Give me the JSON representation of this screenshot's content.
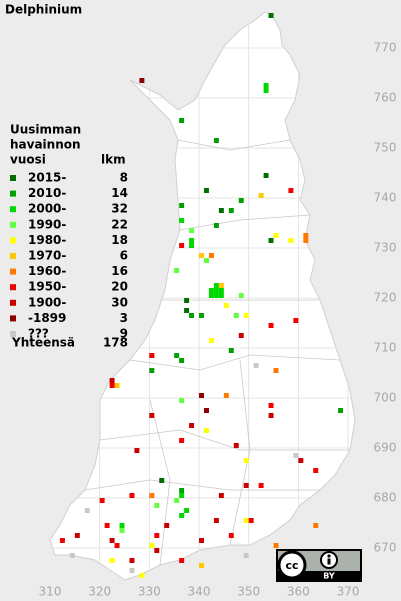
{
  "title": "Delphinium",
  "legend": {
    "heading": [
      "Uusimman",
      "havainnon",
      "vuosi"
    ],
    "count_heading": "lkm",
    "entries": [
      {
        "label": "2015-",
        "count": 8,
        "color": "#006e00",
        "squares": [
          [
            354,
            776
          ],
          [
            353,
            744
          ],
          [
            341,
            741
          ],
          [
            344,
            737
          ],
          [
            354,
            731
          ],
          [
            337,
            717
          ],
          [
            332,
            683
          ],
          [
            337,
            719
          ]
        ]
      },
      {
        "label": "2010-",
        "count": 14,
        "color": "#00a000",
        "squares": [
          [
            336,
            755
          ],
          [
            343,
            751
          ],
          [
            336,
            738
          ],
          [
            346,
            737
          ],
          [
            348,
            739
          ],
          [
            343,
            734
          ],
          [
            335,
            708
          ],
          [
            346,
            709
          ],
          [
            330,
            705
          ],
          [
            368,
            697
          ],
          [
            336,
            707
          ],
          [
            338,
            716
          ],
          [
            340,
            716
          ],
          [
            336,
            681
          ]
        ]
      },
      {
        "label": "2000-",
        "count": 32,
        "color": "#00d800",
        "squares": [
          [
            353,
            761
          ],
          [
            353,
            762
          ],
          [
            338,
            731
          ],
          [
            338,
            730
          ],
          [
            336,
            735
          ],
          [
            342,
            721
          ],
          [
            343,
            721
          ],
          [
            344,
            721
          ],
          [
            342,
            720
          ],
          [
            343,
            720
          ],
          [
            344,
            720
          ],
          [
            343,
            722
          ],
          [
            336,
            680
          ],
          [
            336,
            676
          ],
          [
            337,
            677
          ],
          [
            324,
            674
          ]
        ]
      },
      {
        "label": "1990-",
        "count": 22,
        "color": "#60ff40",
        "squares": [
          [
            338,
            733
          ],
          [
            341,
            727
          ],
          [
            335,
            725
          ],
          [
            348,
            720
          ],
          [
            347,
            716
          ],
          [
            336,
            699
          ],
          [
            331,
            678
          ],
          [
            335,
            679
          ],
          [
            324,
            673
          ]
        ]
      },
      {
        "label": "1980-",
        "count": 18,
        "color": "#ffff00",
        "squares": [
          [
            355,
            732
          ],
          [
            358,
            731
          ],
          [
            349,
            716
          ],
          [
            342,
            711
          ],
          [
            341,
            693
          ],
          [
            349,
            687
          ],
          [
            349,
            675
          ],
          [
            355,
            670
          ],
          [
            328,
            664
          ],
          [
            330,
            670
          ],
          [
            322,
            667
          ],
          [
            345,
            718
          ]
        ]
      },
      {
        "label": "1970-",
        "count": 6,
        "color": "#ffc800",
        "squares": [
          [
            352,
            740
          ],
          [
            340,
            728
          ],
          [
            344,
            722
          ],
          [
            323,
            702
          ],
          [
            340,
            666
          ]
        ]
      },
      {
        "label": "1960-",
        "count": 16,
        "color": "#ff7800",
        "squares": [
          [
            361,
            732
          ],
          [
            361,
            731
          ],
          [
            342,
            728
          ],
          [
            355,
            705
          ],
          [
            363,
            674
          ],
          [
            355,
            670
          ],
          [
            345,
            700
          ],
          [
            330,
            680
          ]
        ]
      },
      {
        "label": "1950-",
        "count": 20,
        "color": "#f00000",
        "squares": [
          [
            358,
            741
          ],
          [
            336,
            730
          ],
          [
            354,
            714
          ],
          [
            359,
            715
          ],
          [
            330,
            708
          ],
          [
            322,
            702
          ],
          [
            354,
            698
          ],
          [
            336,
            691
          ],
          [
            363,
            685
          ],
          [
            320,
            679
          ],
          [
            326,
            680
          ],
          [
            350,
            675
          ],
          [
            321,
            674
          ],
          [
            323,
            670
          ],
          [
            331,
            672
          ],
          [
            336,
            667
          ],
          [
            346,
            672
          ],
          [
            312,
            671
          ],
          [
            352,
            682
          ]
        ]
      },
      {
        "label": "1900-",
        "count": 30,
        "color": "#c80000",
        "squares": [
          [
            348,
            712
          ],
          [
            322,
            703
          ],
          [
            330,
            696
          ],
          [
            354,
            696
          ],
          [
            338,
            694
          ],
          [
            347,
            690
          ],
          [
            360,
            687
          ],
          [
            344,
            680
          ],
          [
            349,
            682
          ],
          [
            326,
            667
          ],
          [
            322,
            671
          ],
          [
            340,
            671
          ],
          [
            333,
            674
          ],
          [
            315,
            672
          ],
          [
            331,
            669
          ],
          [
            343,
            675
          ],
          [
            327,
            689
          ]
        ]
      },
      {
        "label": "-1899",
        "count": 3,
        "color": "#8c0000",
        "squares": [
          [
            328,
            763
          ],
          [
            341,
            697
          ],
          [
            340,
            700
          ]
        ]
      },
      {
        "label": "???",
        "count": 9,
        "color": "#c8c8c8",
        "squares": [
          [
            351,
            706
          ],
          [
            359,
            688
          ],
          [
            326,
            665
          ],
          [
            317,
            677
          ],
          [
            349,
            668
          ],
          [
            314,
            668
          ]
        ]
      }
    ],
    "total_label": "Yhteensä",
    "total": 178
  },
  "axes": {
    "xlim": [
      300,
      380
    ],
    "xticks": [
      310,
      320,
      330,
      340,
      350,
      360,
      370
    ],
    "ylim": [
      660,
      780
    ],
    "yticks": [
      670,
      680,
      690,
      700,
      710,
      720,
      730,
      740,
      750,
      760,
      770
    ]
  },
  "license": {
    "symbol": "cc",
    "label": "BY"
  }
}
